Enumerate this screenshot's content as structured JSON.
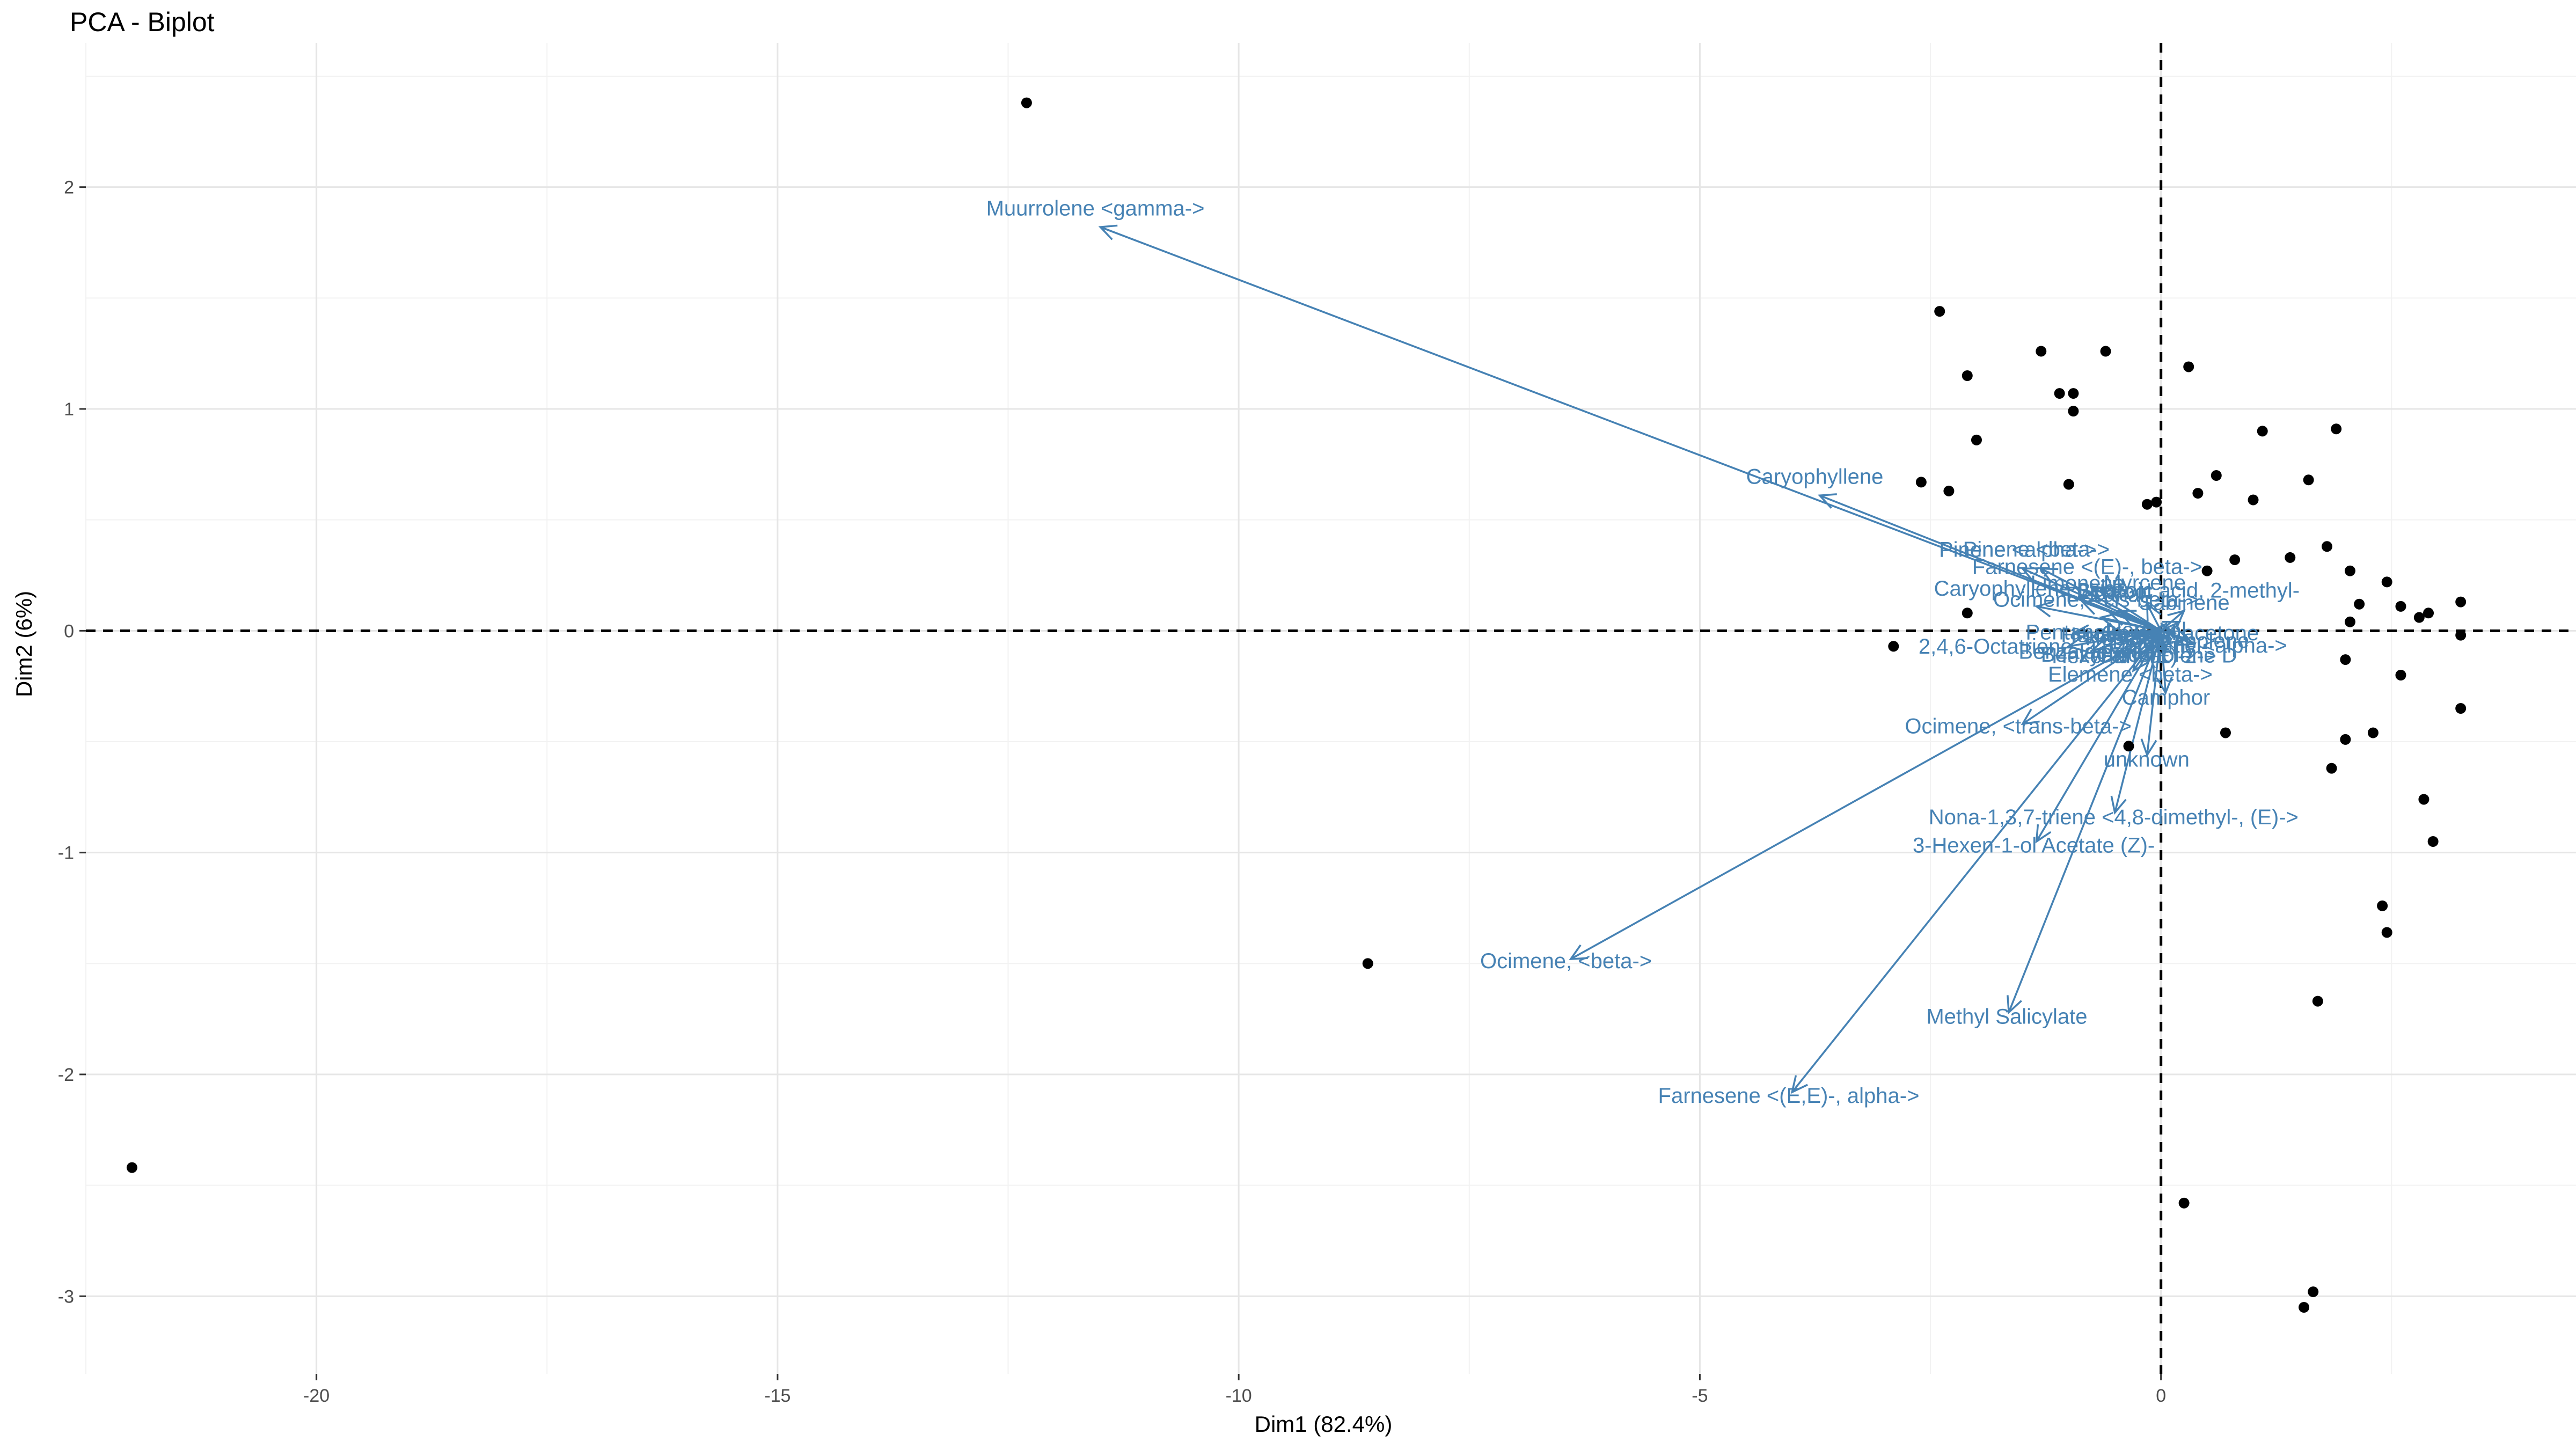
{
  "chart_data": {
    "type": "scatter",
    "title": "PCA - Biplot",
    "xlabel": "Dim1 (82.4%)",
    "ylabel": "Dim2 (6%)",
    "xlim": [
      -22.5,
      4.5
    ],
    "ylim": [
      -3.35,
      2.65
    ],
    "x_ticks": [
      -20,
      -15,
      -10,
      -5,
      0
    ],
    "y_ticks": [
      2,
      1,
      0,
      -1,
      -2,
      -3
    ],
    "grid": true,
    "reference_lines": {
      "x": 0,
      "y": 0,
      "style": "dashed"
    },
    "point_color": "#000000",
    "arrow_color": "#4682b4",
    "points": [
      {
        "x": -12.3,
        "y": 2.38
      },
      {
        "x": -22.0,
        "y": -2.42
      },
      {
        "x": -8.6,
        "y": -1.5
      },
      {
        "x": -2.4,
        "y": 1.44
      },
      {
        "x": -2.1,
        "y": 1.15
      },
      {
        "x": -1.3,
        "y": 1.26
      },
      {
        "x": -0.6,
        "y": 1.26
      },
      {
        "x": -1.1,
        "y": 1.07
      },
      {
        "x": -0.95,
        "y": 1.07
      },
      {
        "x": -0.95,
        "y": 0.99
      },
      {
        "x": -2.0,
        "y": 0.86
      },
      {
        "x": -2.6,
        "y": 0.67
      },
      {
        "x": -2.3,
        "y": 0.63
      },
      {
        "x": -1.0,
        "y": 0.66
      },
      {
        "x": -0.15,
        "y": 0.57
      },
      {
        "x": -0.05,
        "y": 0.58
      },
      {
        "x": 0.3,
        "y": 1.19
      },
      {
        "x": 0.4,
        "y": 0.62
      },
      {
        "x": 0.6,
        "y": 0.7
      },
      {
        "x": 1.0,
        "y": 0.59
      },
      {
        "x": 1.1,
        "y": 0.9
      },
      {
        "x": 1.9,
        "y": 0.91
      },
      {
        "x": 1.6,
        "y": 0.68
      },
      {
        "x": 1.8,
        "y": 0.38
      },
      {
        "x": 1.4,
        "y": 0.33
      },
      {
        "x": 0.8,
        "y": 0.32
      },
      {
        "x": 0.5,
        "y": 0.27
      },
      {
        "x": -2.1,
        "y": 0.08
      },
      {
        "x": -2.9,
        "y": -0.07
      },
      {
        "x": 2.05,
        "y": 0.27
      },
      {
        "x": 2.45,
        "y": 0.22
      },
      {
        "x": 2.15,
        "y": 0.12
      },
      {
        "x": 2.6,
        "y": 0.11
      },
      {
        "x": 2.8,
        "y": 0.06
      },
      {
        "x": 2.9,
        "y": 0.08
      },
      {
        "x": 3.25,
        "y": 0.13
      },
      {
        "x": 3.25,
        "y": -0.02
      },
      {
        "x": 2.05,
        "y": 0.04
      },
      {
        "x": 2.0,
        "y": -0.13
      },
      {
        "x": 2.6,
        "y": -0.2
      },
      {
        "x": 3.25,
        "y": -0.35
      },
      {
        "x": 2.3,
        "y": -0.46
      },
      {
        "x": 2.0,
        "y": -0.49
      },
      {
        "x": 1.85,
        "y": -0.62
      },
      {
        "x": 0.7,
        "y": -0.46
      },
      {
        "x": -0.35,
        "y": -0.52
      },
      {
        "x": 2.85,
        "y": -0.76
      },
      {
        "x": 2.95,
        "y": -0.95
      },
      {
        "x": 2.4,
        "y": -1.24
      },
      {
        "x": 2.45,
        "y": -1.36
      },
      {
        "x": 1.7,
        "y": -1.67
      },
      {
        "x": 0.25,
        "y": -2.58
      },
      {
        "x": 1.65,
        "y": -2.98
      },
      {
        "x": 1.55,
        "y": -3.05
      }
    ],
    "arrows": [
      {
        "label": "Muurrolene <gamma->",
        "x": -11.5,
        "y": 1.82
      },
      {
        "label": "Caryophyllene",
        "x": -3.7,
        "y": 0.61
      },
      {
        "label": "Pinene <alpha->",
        "x": -1.5,
        "y": 0.28
      },
      {
        "label": "Pinene <beta->",
        "x": -1.3,
        "y": 0.28
      },
      {
        "label": "Farnesene <(E)-, beta->",
        "x": -0.75,
        "y": 0.2
      },
      {
        "label": "Caryophyllene oxide",
        "x": -1.35,
        "y": 0.11
      },
      {
        "label": "Limonene",
        "x": -0.85,
        "y": 0.13
      },
      {
        "label": "Linalool",
        "x": -0.45,
        "y": 0.09
      },
      {
        "label": "Myrcene",
        "x": -0.15,
        "y": 0.12
      },
      {
        "label": "Decanal",
        "x": -0.55,
        "y": 0.08
      },
      {
        "label": "Ocimene, <cis-beta->",
        "x": -0.65,
        "y": 0.06
      },
      {
        "label": "Benzoic acid, 2-methyl-",
        "x": 0.25,
        "y": 0.09
      },
      {
        "label": "Pentanal",
        "x": -0.95,
        "y": -0.01
      },
      {
        "label": "Hexanal",
        "x": -0.6,
        "y": -0.02
      },
      {
        "label": "Heptanal",
        "x": -0.3,
        "y": -0.03
      },
      {
        "label": "Nonanal",
        "x": -0.1,
        "y": 0.0
      },
      {
        "label": "Geranyl acetone",
        "x": 0.15,
        "y": -0.01
      },
      {
        "label": "Terpinolene",
        "x": 0.3,
        "y": -0.04
      },
      {
        "label": "Sabinene",
        "x": 0.2,
        "y": 0.04
      },
      {
        "label": "2,4,6-Octatriene, 2,6-dimethyl-",
        "x": -1.0,
        "y": -0.07
      },
      {
        "label": "Benzaldehyde",
        "x": -0.75,
        "y": -0.09
      },
      {
        "label": "Benzyl alcohol",
        "x": -0.5,
        "y": -0.1
      },
      {
        "label": "Hexenal <(E)-2->",
        "x": -0.25,
        "y": -0.1
      },
      {
        "label": "Germacrene D",
        "x": 0.05,
        "y": -0.09
      },
      {
        "label": "Copaene <alpha->",
        "x": 0.35,
        "y": -0.06
      },
      {
        "label": "Elemene <beta->",
        "x": -0.3,
        "y": -0.18
      },
      {
        "label": "Camphor",
        "x": 0.05,
        "y": -0.28
      },
      {
        "label": "Ocimene, <trans-beta->",
        "x": -1.5,
        "y": -0.42
      },
      {
        "label": "unknown",
        "x": -0.15,
        "y": -0.56
      },
      {
        "label": "Nona-1,3,7-triene <4,8-dimethyl-, (E)->",
        "x": -0.5,
        "y": -0.82
      },
      {
        "label": "3-Hexen-1-ol Acetate (Z)-",
        "x": -1.35,
        "y": -0.95
      },
      {
        "label": "Ocimene, <beta->",
        "x": -6.4,
        "y": -1.48
      },
      {
        "label": "Methyl Salicylate",
        "x": -1.65,
        "y": -1.72
      },
      {
        "label": "Farnesene <(E,E)-, alpha->",
        "x": -4.0,
        "y": -2.08
      }
    ]
  }
}
